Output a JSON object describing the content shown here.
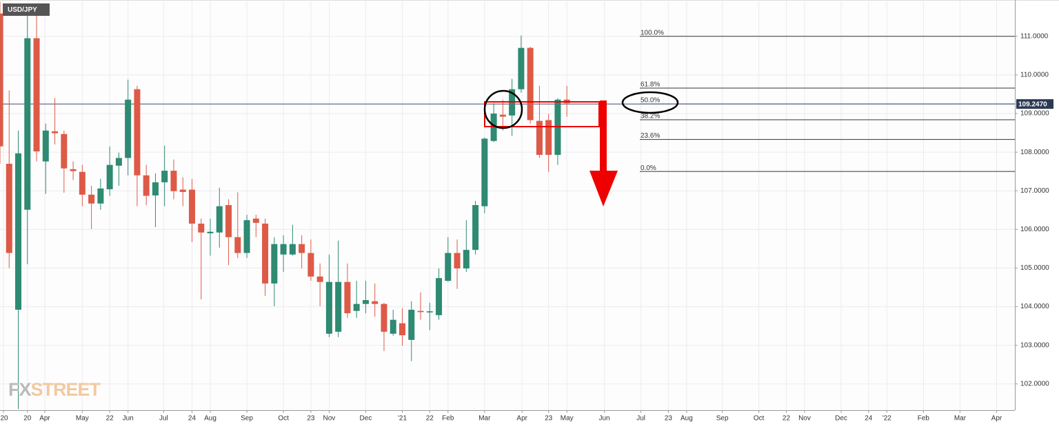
{
  "chart_data": {
    "type": "candlestick",
    "title": "USD/JPY",
    "watermark": [
      "FX",
      "STREET"
    ],
    "up_color": "#2e8a72",
    "down_color": "#dd5a47",
    "grid": true,
    "x": [
      0,
      1,
      2,
      3,
      4,
      5,
      6,
      7,
      8,
      9,
      10,
      11,
      12,
      13,
      14,
      15,
      16,
      17,
      18,
      19,
      20,
      21,
      22,
      23,
      24,
      25,
      26,
      27,
      28,
      29,
      30,
      31,
      32,
      33,
      34,
      35,
      36,
      37,
      38,
      39,
      40,
      41,
      42,
      43,
      44,
      45,
      46,
      47,
      48,
      49,
      50,
      51,
      52,
      53,
      54,
      55,
      56,
      57,
      58,
      59,
      60,
      61,
      62
    ],
    "open": [
      111.59,
      107.7,
      103.92,
      106.51,
      110.95,
      107.76,
      108.54,
      108.47,
      107.56,
      107.49,
      106.9,
      106.67,
      107.04,
      107.65,
      107.85,
      109.63,
      107.4,
      106.88,
      107.22,
      107.52,
      107.03,
      107.03,
      106.15,
      105.9,
      105.92,
      106.63,
      105.8,
      105.39,
      106.28,
      106.15,
      104.6,
      105.35,
      105.35,
      105.62,
      105.39,
      104.78,
      103.3,
      103.35,
      104.64,
      103.89,
      104.07,
      104.14,
      104.07,
      103.3,
      103.57,
      103.14,
      103.89,
      103.85,
      103.78,
      104.67,
      105.39,
      104.99,
      105.47,
      106.6,
      108.29,
      108.97,
      108.95,
      109.63,
      110.7,
      108.81,
      108.83,
      107.93,
      109.36
    ],
    "high": [
      111.9,
      109.6,
      108.56,
      111.77,
      111.77,
      108.74,
      109.4,
      108.56,
      107.76,
      107.67,
      107.13,
      107.31,
      108.15,
      107.99,
      109.88,
      109.72,
      107.67,
      107.45,
      108.17,
      107.81,
      107.35,
      107.31,
      106.28,
      106.28,
      107.08,
      106.78,
      106.96,
      106.38,
      106.38,
      106.28,
      105.8,
      105.85,
      106.12,
      105.85,
      105.74,
      105.12,
      105.35,
      105.71,
      105.12,
      104.67,
      104.67,
      104.6,
      104.1,
      103.92,
      103.96,
      104.14,
      104.37,
      104.1,
      104.99,
      105.8,
      105.74,
      106.24,
      106.74,
      108.38,
      109.27,
      109.36,
      109.9,
      111.02,
      110.73,
      109.72,
      108.99,
      109.4,
      109.72
    ],
    "low": [
      107.7,
      105.0,
      101.35,
      105.1,
      107.76,
      106.92,
      108.2,
      106.95,
      107.28,
      106.6,
      106.01,
      106.51,
      106.87,
      107.13,
      107.4,
      106.6,
      106.63,
      106.06,
      106.6,
      106.78,
      106.6,
      105.67,
      104.19,
      105.32,
      105.53,
      105.08,
      105.26,
      105.26,
      105.8,
      104.28,
      104.01,
      104.9,
      105.32,
      104.99,
      104.67,
      104.01,
      103.21,
      103.21,
      103.71,
      103.71,
      103.83,
      103.74,
      102.85,
      103.25,
      102.99,
      102.59,
      103.66,
      103.39,
      103.66,
      104.64,
      104.46,
      104.9,
      105.35,
      106.42,
      108.26,
      108.56,
      108.42,
      109.54,
      108.74,
      107.85,
      107.49,
      107.67,
      108.92
    ],
    "close": [
      108.15,
      105.39,
      107.97,
      110.95,
      108.02,
      108.56,
      108.49,
      107.58,
      107.51,
      106.9,
      106.67,
      107.06,
      107.67,
      107.85,
      109.36,
      107.4,
      106.87,
      107.22,
      107.52,
      106.99,
      106.97,
      106.15,
      105.92,
      105.94,
      106.6,
      105.8,
      105.39,
      106.24,
      106.17,
      104.6,
      105.62,
      105.62,
      105.62,
      105.39,
      104.78,
      104.64,
      104.64,
      104.64,
      103.83,
      104.07,
      104.17,
      104.07,
      103.35,
      103.66,
      103.26,
      103.92,
      103.86,
      103.88,
      104.74,
      105.39,
      104.99,
      105.47,
      106.63,
      108.35,
      109.0,
      108.92,
      109.63,
      110.7,
      108.83,
      107.93,
      107.93,
      109.36,
      109.27
    ],
    "xlim": [
      0,
      111
    ],
    "xticks": [
      {
        "value": 0.38,
        "label": "'20"
      },
      {
        "value": 3.0,
        "label": "20"
      },
      {
        "value": 4.9,
        "label": "Apr"
      },
      {
        "value": 9.0,
        "label": "May"
      },
      {
        "value": 12.0,
        "label": "22"
      },
      {
        "value": 14.0,
        "label": "Jun"
      },
      {
        "value": 17.9,
        "label": "Jul"
      },
      {
        "value": 21.0,
        "label": "24"
      },
      {
        "value": 23.0,
        "label": "Aug"
      },
      {
        "value": 27.0,
        "label": "Sep"
      },
      {
        "value": 31.0,
        "label": "Oct"
      },
      {
        "value": 34.0,
        "label": "23"
      },
      {
        "value": 36.0,
        "label": "Nov"
      },
      {
        "value": 40.0,
        "label": "Dec"
      },
      {
        "value": 44.0,
        "label": "'21"
      },
      {
        "value": 47.0,
        "label": "22"
      },
      {
        "value": 49.0,
        "label": "Feb"
      },
      {
        "value": 53.0,
        "label": "Mar"
      },
      {
        "value": 57.1,
        "label": "Apr"
      },
      {
        "value": 60.0,
        "label": "23"
      },
      {
        "value": 62.0,
        "label": "May"
      },
      {
        "value": 66.1,
        "label": "Jun"
      },
      {
        "value": 70.1,
        "label": "Jul"
      },
      {
        "value": 73.1,
        "label": "23"
      },
      {
        "value": 75.1,
        "label": "Aug"
      },
      {
        "value": 79.0,
        "label": "Sep"
      },
      {
        "value": 83.0,
        "label": "Oct"
      },
      {
        "value": 86.0,
        "label": "22"
      },
      {
        "value": 88.0,
        "label": "Nov"
      },
      {
        "value": 92.0,
        "label": "Dec"
      },
      {
        "value": 95.0,
        "label": "24"
      },
      {
        "value": 97.0,
        "label": "'22"
      },
      {
        "value": 101.0,
        "label": "Feb"
      },
      {
        "value": 105.0,
        "label": "Mar"
      },
      {
        "value": 109.0,
        "label": "Apr"
      }
    ],
    "ylim": [
      101.32,
      111.94
    ],
    "yticks": [
      {
        "value": 102,
        "label": "102.0000"
      },
      {
        "value": 103,
        "label": "103.0000"
      },
      {
        "value": 104,
        "label": "104.0000"
      },
      {
        "value": 105,
        "label": "105.0000"
      },
      {
        "value": 106,
        "label": "106.0000"
      },
      {
        "value": 107,
        "label": "107.0000"
      },
      {
        "value": 108,
        "label": "108.0000"
      },
      {
        "value": 109,
        "label": "109.0000"
      },
      {
        "value": 110,
        "label": "110.0000"
      },
      {
        "value": 111,
        "label": "111.0000"
      }
    ],
    "current_price": {
      "value": 109.247,
      "label": "109.2470"
    },
    "fib_levels": [
      {
        "value": 111.0,
        "label": "100.0%"
      },
      {
        "value": 109.66,
        "label": "61.8%"
      },
      {
        "value": 109.25,
        "label": "50.0%"
      },
      {
        "value": 108.84,
        "label": "38.2%"
      },
      {
        "value": 108.33,
        "label": "23.6%"
      },
      {
        "value": 107.5,
        "label": "0.0%"
      }
    ]
  }
}
